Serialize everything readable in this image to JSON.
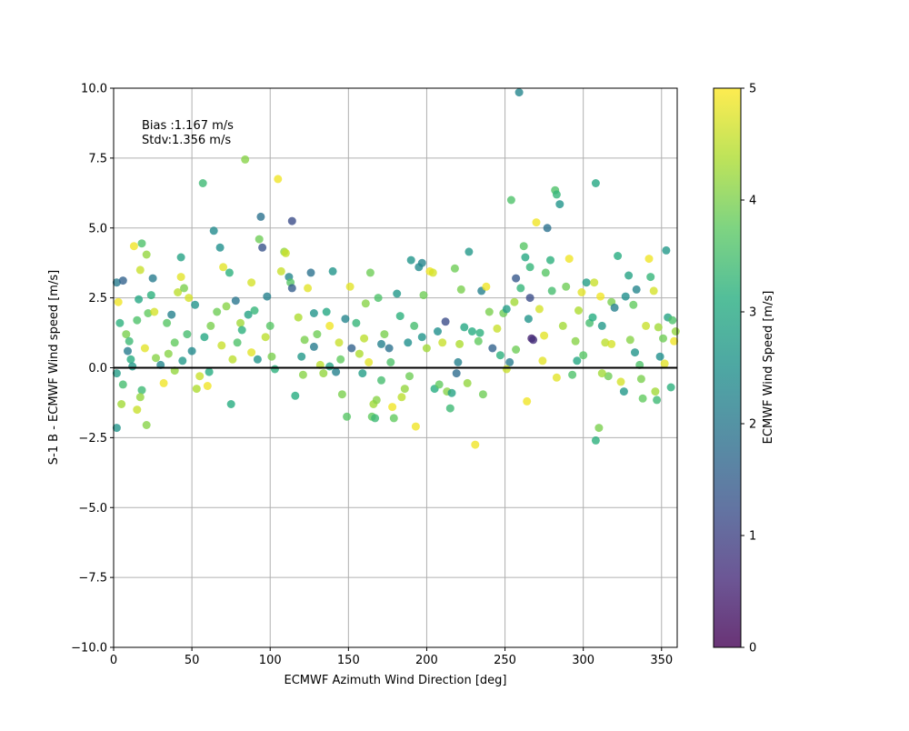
{
  "chart_data": {
    "type": "scatter",
    "xlabel": "ECMWF Azimuth Wind Direction [deg]",
    "ylabel": "S-1 B - ECMWF Wind speed [m/s]",
    "xlim": [
      0,
      360
    ],
    "ylim": [
      -10,
      10
    ],
    "xticks": [
      0,
      50,
      100,
      150,
      200,
      250,
      300,
      350
    ],
    "yticks": [
      -10.0,
      -7.5,
      -5.0,
      -2.5,
      0.0,
      2.5,
      5.0,
      7.5,
      10.0
    ],
    "grid": true,
    "zero_line": 0,
    "annotation_lines": [
      "Bias :1.167 m/s",
      "Stdv:1.356 m/s"
    ],
    "colorbar": {
      "label": "ECMWF Wind Speed [m/s]",
      "min": 0,
      "max": 5,
      "ticks": [
        0,
        1,
        2,
        3,
        4,
        5
      ],
      "colormap": "viridis"
    },
    "points_note_generated": [],
    "points": [
      [
        2,
        3.05,
        2.1
      ],
      [
        6,
        3.12,
        1.6
      ],
      [
        3,
        2.35,
        4.9
      ],
      [
        4,
        1.6,
        3.2
      ],
      [
        2,
        -0.2,
        2.8
      ],
      [
        2,
        -2.15,
        2.6
      ],
      [
        5,
        -1.3,
        4.3
      ],
      [
        6,
        -0.6,
        3.5
      ],
      [
        8,
        1.2,
        4.0
      ],
      [
        9,
        0.6,
        2.1
      ],
      [
        11,
        0.3,
        3.1
      ],
      [
        12,
        0.05,
        2.7
      ],
      [
        13,
        4.35,
        4.9
      ],
      [
        15,
        1.7,
        3.6
      ],
      [
        16,
        2.45,
        3.0
      ],
      [
        17,
        3.5,
        4.6
      ],
      [
        18,
        4.45,
        3.6
      ],
      [
        20,
        0.7,
        4.8
      ],
      [
        21,
        4.05,
        4.2
      ],
      [
        22,
        1.95,
        3.8
      ],
      [
        24,
        2.6,
        3.2
      ],
      [
        25,
        3.2,
        2.1
      ],
      [
        26,
        2.0,
        4.7
      ],
      [
        21,
        -2.05,
        4.1
      ],
      [
        18,
        -0.8,
        3.4
      ],
      [
        17,
        -1.05,
        4.2
      ],
      [
        15,
        -1.5,
        4.6
      ],
      [
        30,
        0.1,
        2.3
      ],
      [
        32,
        -0.55,
        4.9
      ],
      [
        34,
        1.6,
        3.7
      ],
      [
        35,
        0.5,
        4.1
      ],
      [
        37,
        1.9,
        2.2
      ],
      [
        39,
        0.9,
        3.8
      ],
      [
        41,
        2.7,
        4.5
      ],
      [
        43,
        3.95,
        2.9
      ],
      [
        45,
        2.85,
        4.0
      ],
      [
        43,
        3.25,
        4.8
      ],
      [
        47,
        1.2,
        3.5
      ],
      [
        48,
        2.5,
        4.7
      ],
      [
        50,
        0.6,
        2.4
      ],
      [
        52,
        2.25,
        2.6
      ],
      [
        55,
        -0.3,
        4.6
      ],
      [
        53,
        -0.75,
        4.4
      ],
      [
        57,
        6.6,
        3.4
      ],
      [
        58,
        1.1,
        3.0
      ],
      [
        60,
        -0.65,
        4.9
      ],
      [
        62,
        1.5,
        4.0
      ],
      [
        64,
        4.9,
        2.4
      ],
      [
        66,
        2.0,
        3.9
      ],
      [
        68,
        4.3,
        2.5
      ],
      [
        70,
        3.6,
        4.8
      ],
      [
        72,
        2.2,
        4.1
      ],
      [
        74,
        3.4,
        3.2
      ],
      [
        75,
        -1.3,
        3.1
      ],
      [
        76,
        0.3,
        4.5
      ],
      [
        78,
        2.4,
        2.0
      ],
      [
        79,
        0.9,
        3.6
      ],
      [
        81,
        1.6,
        4.3
      ],
      [
        84,
        7.45,
        4.1
      ],
      [
        86,
        1.9,
        2.9
      ],
      [
        88,
        3.05,
        4.7
      ],
      [
        90,
        2.05,
        3.3
      ],
      [
        92,
        0.3,
        2.6
      ],
      [
        93,
        4.6,
        3.9
      ],
      [
        94,
        5.4,
        1.9
      ],
      [
        95,
        4.3,
        1.3
      ],
      [
        97,
        1.1,
        4.5
      ],
      [
        98,
        2.55,
        2.2
      ],
      [
        100,
        1.5,
        3.7
      ],
      [
        103,
        -0.05,
        3.2
      ],
      [
        105,
        6.75,
        4.9
      ],
      [
        107,
        3.45,
        4.6
      ],
      [
        109,
        4.15,
        4.2
      ],
      [
        110,
        4.1,
        4.6
      ],
      [
        112,
        3.25,
        2.3
      ],
      [
        113,
        3.05,
        3.7
      ],
      [
        114,
        5.25,
        1.2
      ],
      [
        114,
        2.85,
        1.5
      ],
      [
        116,
        -1.0,
        3.1
      ],
      [
        118,
        1.8,
        4.4
      ],
      [
        120,
        0.4,
        2.7
      ],
      [
        122,
        1.0,
        4.0
      ],
      [
        124,
        2.85,
        4.8
      ],
      [
        126,
        3.4,
        1.9
      ],
      [
        128,
        1.95,
        2.6
      ],
      [
        130,
        1.2,
        3.9
      ],
      [
        132,
        0.1,
        4.5
      ],
      [
        134,
        -0.2,
        4.2
      ],
      [
        136,
        2.0,
        3.0
      ],
      [
        138,
        1.5,
        4.9
      ],
      [
        140,
        3.45,
        2.6
      ],
      [
        142,
        -0.15,
        2.2
      ],
      [
        144,
        0.9,
        4.6
      ],
      [
        146,
        -0.95,
        4.0
      ],
      [
        148,
        1.75,
        2.3
      ],
      [
        149,
        -1.75,
        3.7
      ],
      [
        151,
        2.9,
        4.8
      ],
      [
        152,
        0.7,
        1.6
      ],
      [
        155,
        1.6,
        3.3
      ],
      [
        157,
        0.5,
        4.4
      ],
      [
        159,
        -0.2,
        2.8
      ],
      [
        161,
        2.3,
        4.1
      ],
      [
        163,
        0.2,
        4.8
      ],
      [
        164,
        3.4,
        3.9
      ],
      [
        165,
        -1.75,
        3.8
      ],
      [
        166,
        -1.3,
        4.3
      ],
      [
        167,
        -1.8,
        3.4
      ],
      [
        168,
        -1.15,
        4.1
      ],
      [
        169,
        2.5,
        3.6
      ],
      [
        171,
        0.85,
        2.2
      ],
      [
        173,
        1.2,
        4.0
      ],
      [
        176,
        0.7,
        1.9
      ],
      [
        178,
        -1.4,
        4.9
      ],
      [
        179,
        -1.8,
        3.8
      ],
      [
        181,
        2.65,
        2.7
      ],
      [
        183,
        1.85,
        3.2
      ],
      [
        184,
        -1.05,
        4.5
      ],
      [
        186,
        -0.75,
        4.2
      ],
      [
        188,
        0.9,
        2.5
      ],
      [
        190,
        3.85,
        2.6
      ],
      [
        192,
        1.5,
        3.5
      ],
      [
        193,
        -2.1,
        4.9
      ],
      [
        195,
        3.6,
        2.4
      ],
      [
        197,
        3.75,
        2.3
      ],
      [
        198,
        2.6,
        3.9
      ],
      [
        200,
        0.7,
        4.3
      ],
      [
        202,
        3.45,
        4.9
      ],
      [
        204,
        3.4,
        4.7
      ],
      [
        205,
        -0.75,
        3.1
      ],
      [
        207,
        1.3,
        2.5
      ],
      [
        208,
        -0.6,
        3.8
      ],
      [
        210,
        0.9,
        4.6
      ],
      [
        212,
        1.65,
        1.2
      ],
      [
        213,
        -0.85,
        4.1
      ],
      [
        215,
        -1.45,
        3.4
      ],
      [
        216,
        -0.9,
        2.9
      ],
      [
        218,
        3.55,
        3.9
      ],
      [
        220,
        0.2,
        2.2
      ],
      [
        222,
        2.8,
        4.0
      ],
      [
        224,
        1.45,
        3.0
      ],
      [
        226,
        -0.55,
        4.2
      ],
      [
        227,
        4.15,
        2.7
      ],
      [
        229,
        1.3,
        3.1
      ],
      [
        231,
        -2.75,
        4.9
      ],
      [
        233,
        0.95,
        3.8
      ],
      [
        235,
        2.75,
        2.2
      ],
      [
        236,
        -0.95,
        3.9
      ],
      [
        238,
        2.9,
        4.9
      ],
      [
        240,
        2.0,
        4.0
      ],
      [
        242,
        0.7,
        1.6
      ],
      [
        245,
        1.4,
        4.6
      ],
      [
        247,
        0.45,
        3.2
      ],
      [
        249,
        1.95,
        3.9
      ],
      [
        251,
        2.1,
        2.8
      ],
      [
        253,
        0.2,
        2.1
      ],
      [
        254,
        6.0,
        3.6
      ],
      [
        256,
        2.35,
        4.3
      ],
      [
        257,
        3.2,
        1.4
      ],
      [
        259,
        9.85,
        2.3
      ],
      [
        260,
        2.85,
        3.3
      ],
      [
        262,
        4.35,
        3.7
      ],
      [
        263,
        3.95,
        3.0
      ],
      [
        264,
        -1.2,
        4.9
      ],
      [
        265,
        1.75,
        2.6
      ],
      [
        266,
        3.6,
        3.3
      ],
      [
        266,
        2.5,
        1.2
      ],
      [
        267,
        1.05,
        0.5
      ],
      [
        268,
        1.0,
        0.7
      ],
      [
        270,
        5.2,
        4.9
      ],
      [
        272,
        2.1,
        4.7
      ],
      [
        274,
        0.25,
        4.8
      ],
      [
        276,
        3.4,
        3.7
      ],
      [
        277,
        5.0,
        1.9
      ],
      [
        279,
        3.85,
        3.2
      ],
      [
        280,
        2.75,
        3.5
      ],
      [
        282,
        6.35,
        3.6
      ],
      [
        283,
        6.2,
        3.3
      ],
      [
        285,
        5.85,
        2.6
      ],
      [
        287,
        1.5,
        4.3
      ],
      [
        289,
        2.9,
        3.9
      ],
      [
        291,
        3.9,
        4.9
      ],
      [
        293,
        -0.25,
        3.6
      ],
      [
        295,
        0.95,
        4.1
      ],
      [
        297,
        2.05,
        4.4
      ],
      [
        299,
        2.7,
        4.8
      ],
      [
        300,
        0.45,
        3.7
      ],
      [
        302,
        3.05,
        2.8
      ],
      [
        304,
        1.6,
        3.5
      ],
      [
        306,
        1.8,
        3.1
      ],
      [
        307,
        3.05,
        4.6
      ],
      [
        308,
        6.6,
        3.0
      ],
      [
        308,
        -2.6,
        3.2
      ],
      [
        310,
        -2.15,
        4.0
      ],
      [
        311,
        2.55,
        4.9
      ],
      [
        312,
        1.5,
        2.7
      ],
      [
        314,
        0.9,
        4.5
      ],
      [
        316,
        -0.3,
        3.9
      ],
      [
        318,
        2.35,
        4.0
      ],
      [
        320,
        2.15,
        2.2
      ],
      [
        322,
        4.0,
        3.1
      ],
      [
        324,
        -0.5,
        4.7
      ],
      [
        326,
        -0.85,
        2.7
      ],
      [
        327,
        2.55,
        2.5
      ],
      [
        329,
        3.3,
        2.9
      ],
      [
        330,
        1.0,
        4.1
      ],
      [
        332,
        2.25,
        3.8
      ],
      [
        334,
        2.8,
        2.3
      ],
      [
        336,
        0.1,
        3.6
      ],
      [
        338,
        -1.1,
        3.8
      ],
      [
        340,
        1.5,
        4.6
      ],
      [
        342,
        3.9,
        4.9
      ],
      [
        343,
        3.25,
        3.3
      ],
      [
        345,
        2.75,
        4.7
      ],
      [
        346,
        -0.85,
        4.3
      ],
      [
        347,
        -1.15,
        3.4
      ],
      [
        349,
        0.4,
        2.5
      ],
      [
        351,
        1.05,
        3.9
      ],
      [
        352,
        0.15,
        4.8
      ],
      [
        353,
        4.2,
        2.7
      ],
      [
        354,
        1.8,
        2.9
      ],
      [
        356,
        -0.7,
        3.2
      ],
      [
        357,
        1.7,
        3.6
      ],
      [
        358,
        0.95,
        4.9
      ],
      [
        359,
        1.3,
        4.2
      ],
      [
        39,
        -0.1,
        4.2
      ],
      [
        61,
        -0.15,
        3.1
      ],
      [
        88,
        0.55,
        4.8
      ],
      [
        121,
        -0.25,
        4.1
      ],
      [
        138,
        0.05,
        2.9
      ],
      [
        171,
        -0.45,
        3.5
      ],
      [
        189,
        -0.3,
        3.9
      ],
      [
        219,
        -0.2,
        1.8
      ],
      [
        251,
        -0.05,
        4.6
      ],
      [
        283,
        -0.35,
        4.8
      ],
      [
        312,
        -0.2,
        4.3
      ],
      [
        337,
        -0.4,
        4.0
      ],
      [
        10,
        0.95,
        3.4
      ],
      [
        27,
        0.35,
        4.1
      ],
      [
        44,
        0.25,
        2.7
      ],
      [
        69,
        0.8,
        4.6
      ],
      [
        82,
        1.35,
        3.2
      ],
      [
        101,
        0.4,
        4.0
      ],
      [
        128,
        0.75,
        2.1
      ],
      [
        145,
        0.3,
        3.8
      ],
      [
        160,
        1.05,
        4.5
      ],
      [
        177,
        0.2,
        3.6
      ],
      [
        197,
        1.1,
        2.6
      ],
      [
        221,
        0.85,
        4.4
      ],
      [
        234,
        1.25,
        3.2
      ],
      [
        257,
        0.65,
        3.9
      ],
      [
        275,
        1.15,
        4.8
      ],
      [
        296,
        0.25,
        3.0
      ],
      [
        318,
        0.85,
        4.7
      ],
      [
        333,
        0.55,
        2.6
      ],
      [
        348,
        1.45,
        4.3
      ]
    ]
  }
}
